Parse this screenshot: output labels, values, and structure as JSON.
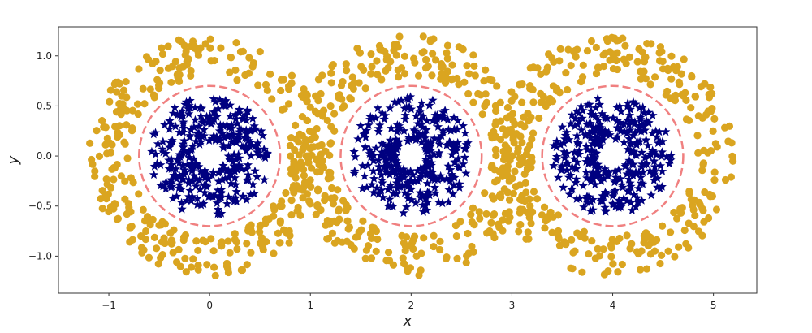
{
  "chart_data": {
    "type": "scatter",
    "title": "",
    "xlabel": "x",
    "ylabel": "y",
    "xlim": [
      -1.5,
      5.43
    ],
    "ylim": [
      -1.37,
      1.29
    ],
    "xticks": [
      "−1",
      "0",
      "1",
      "2",
      "3",
      "4",
      "5"
    ],
    "xtick_values": [
      -1,
      0,
      1,
      2,
      3,
      4,
      5
    ],
    "yticks": [
      "−1.0",
      "−0.5",
      "0.0",
      "0.5",
      "1.0"
    ],
    "ytick_values": [
      -1.0,
      -0.5,
      0.0,
      0.5,
      1.0
    ],
    "grid": false,
    "legend": "none",
    "series": [
      {
        "marker": "circle",
        "color": "#DAA520",
        "distribution": "annulus",
        "centers": [
          [
            0,
            0
          ],
          [
            2,
            0
          ],
          [
            4,
            0
          ]
        ],
        "radius_range": [
          0.8,
          1.2
        ],
        "points_per_center": 330
      },
      {
        "marker": "star",
        "color": "#000080",
        "distribution": "annulus",
        "centers": [
          [
            0,
            0
          ],
          [
            2,
            0
          ],
          [
            4,
            0
          ]
        ],
        "radius_range": [
          0.15,
          0.6
        ],
        "points_per_center": 330
      }
    ],
    "circles": {
      "centers": [
        [
          0,
          0
        ],
        [
          2,
          0
        ],
        [
          4,
          0
        ]
      ],
      "radius": 0.7,
      "color": "#F08080",
      "style": "dashed"
    }
  }
}
